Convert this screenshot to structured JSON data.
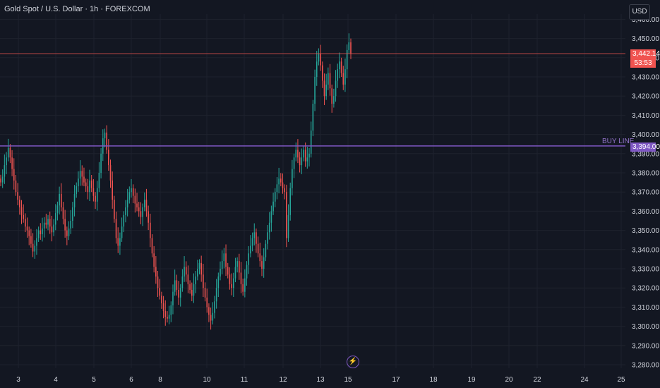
{
  "header": {
    "title": "Gold Spot / U.S. Dollar · 1h · FOREXCOM",
    "currency_label": "USD"
  },
  "current_price": {
    "value": "3,442.14",
    "countdown": "53:53",
    "level": 3442.14,
    "color": "#f05350"
  },
  "buy_line": {
    "label": "BUY LINE",
    "value": "3,394.00",
    "level": 3394.0,
    "color": "#7e57c2"
  },
  "flash_icon": "lightning-icon",
  "colors": {
    "background": "#131722",
    "up": "#26a69a",
    "down": "#ef5350",
    "grid": "#1e222d",
    "text": "#d1d4dc"
  },
  "chart_data": {
    "type": "candlestick",
    "y_ticks": [
      "3,460.00",
      "3,450.00",
      "3,440.00",
      "3,430.00",
      "3,420.00",
      "3,410.00",
      "3,400.00",
      "3,390.00",
      "3,380.00",
      "3,370.00",
      "3,360.00",
      "3,350.00",
      "3,340.00",
      "3,330.00",
      "3,320.00",
      "3,310.00",
      "3,300.00",
      "3,290.00",
      "3,280.00"
    ],
    "y_tick_values": [
      3460,
      3450,
      3440,
      3430,
      3420,
      3410,
      3400,
      3390,
      3380,
      3370,
      3360,
      3350,
      3340,
      3330,
      3320,
      3310,
      3300,
      3290,
      3280
    ],
    "x_ticks": [
      "3",
      "4",
      "5",
      "6",
      "8",
      "10",
      "11",
      "12",
      "13",
      "15",
      "17",
      "18",
      "19",
      "20",
      "22",
      "24",
      "25"
    ],
    "ylim": [
      3276,
      3466
    ],
    "grid": true,
    "candles_close": [
      3375,
      3378,
      3384,
      3388,
      3393,
      3388,
      3382,
      3376,
      3370,
      3366,
      3362,
      3358,
      3356,
      3352,
      3350,
      3347,
      3343,
      3339,
      3342,
      3346,
      3350,
      3348,
      3351,
      3354,
      3353,
      3356,
      3352,
      3349,
      3353,
      3359,
      3363,
      3369,
      3362,
      3356,
      3350,
      3347,
      3351,
      3355,
      3362,
      3369,
      3373,
      3377,
      3381,
      3378,
      3375,
      3373,
      3370,
      3376,
      3372,
      3368,
      3365,
      3372,
      3380,
      3390,
      3398,
      3401,
      3392,
      3384,
      3376,
      3366,
      3356,
      3346,
      3342,
      3346,
      3352,
      3358,
      3362,
      3366,
      3370,
      3372,
      3368,
      3364,
      3362,
      3360,
      3357,
      3362,
      3366,
      3360,
      3354,
      3346,
      3338,
      3331,
      3326,
      3320,
      3316,
      3312,
      3308,
      3305,
      3304,
      3306,
      3311,
      3318,
      3324,
      3319,
      3315,
      3320,
      3326,
      3331,
      3327,
      3322,
      3319,
      3316,
      3322,
      3326,
      3330,
      3333,
      3327,
      3320,
      3315,
      3310,
      3306,
      3303,
      3307,
      3313,
      3320,
      3326,
      3330,
      3334,
      3338,
      3331,
      3327,
      3322,
      3320,
      3325,
      3331,
      3334,
      3328,
      3322,
      3318,
      3325,
      3332,
      3338,
      3342,
      3346,
      3349,
      3343,
      3338,
      3334,
      3330,
      3336,
      3343,
      3349,
      3354,
      3360,
      3365,
      3370,
      3374,
      3377,
      3375,
      3372,
      3370,
      3346,
      3358,
      3372,
      3382,
      3388,
      3392,
      3388,
      3384,
      3388,
      3392,
      3386,
      3388,
      3390,
      3402,
      3416,
      3430,
      3438,
      3442,
      3436,
      3428,
      3420,
      3426,
      3432,
      3424,
      3416,
      3420,
      3428,
      3434,
      3438,
      3432,
      3426,
      3434,
      3444,
      3448,
      3442.14
    ]
  }
}
